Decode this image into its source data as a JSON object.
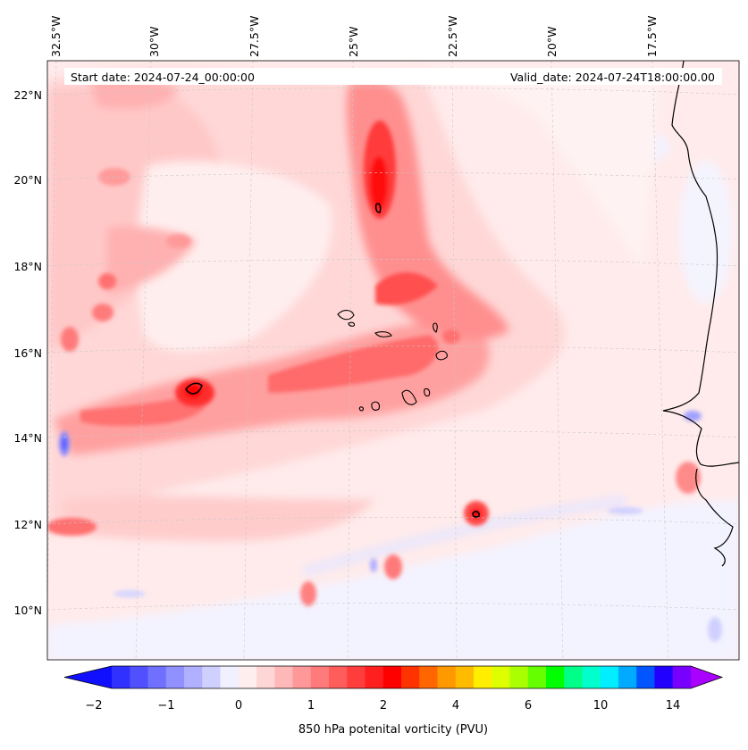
{
  "header": {
    "start_date": "Start date: 2024-07-24_00:00:00",
    "valid_date": "Valid_date: 2024-07-24T18:00:00.00"
  },
  "axes": {
    "lon_labels": [
      "32.5°W",
      "30°W",
      "27.5°W",
      "25°W",
      "22.5°W",
      "20°W",
      "17.5°W"
    ],
    "lat_labels": [
      "22°N",
      "20°N",
      "18°N",
      "16°N",
      "14°N",
      "12°N",
      "10°N"
    ]
  },
  "colorbar": {
    "label": "850 hPa potenital vorticity (PVU)",
    "ticks": [
      "−2",
      "−1",
      "0",
      "1",
      "2",
      "4",
      "6",
      "10",
      "14"
    ],
    "colors": [
      "#1010ff",
      "#3030ff",
      "#5050ff",
      "#7070ff",
      "#9090ff",
      "#b0b0ff",
      "#d0d0ff",
      "#f0f0ff",
      "#ffeeee",
      "#ffd6d6",
      "#ffb8b8",
      "#ff9999",
      "#ff7a7a",
      "#ff5c5c",
      "#ff3d3d",
      "#ff1f1f",
      "#ff0000",
      "#ff3300",
      "#ff6600",
      "#ff9900",
      "#ffbb00",
      "#ffee00",
      "#ddff00",
      "#aaff00",
      "#66ff00",
      "#00ff00",
      "#00ff88",
      "#00ffcc",
      "#00eeff",
      "#00aaff",
      "#0055ff",
      "#2200ff",
      "#7700ff",
      "#aa00ff"
    ]
  }
}
